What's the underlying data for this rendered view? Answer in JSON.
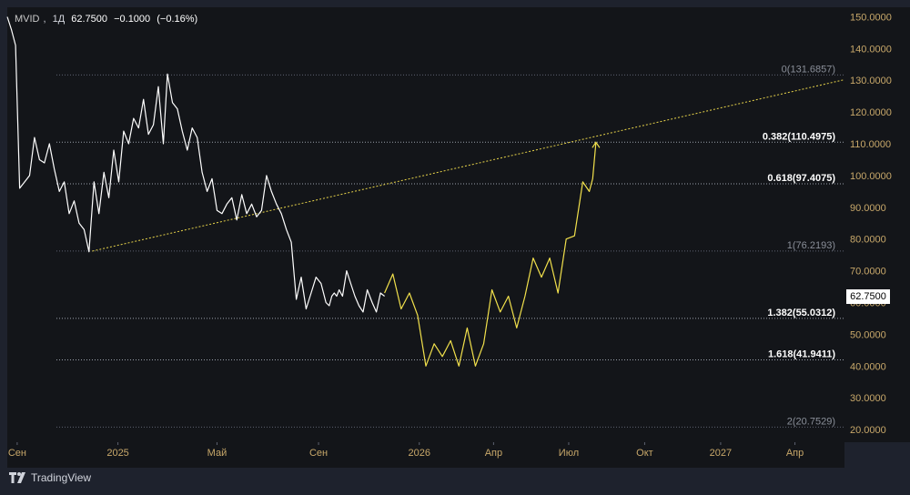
{
  "header": {
    "symbol": "MVID",
    "interval": "1Д",
    "price": "62.7500",
    "change": "−0.1000",
    "change_pct": "(−0.16%)"
  },
  "last_price_tag": "62.7500",
  "footer": {
    "brand": "TradingView",
    "logo": "tv-logo-icon"
  },
  "colors": {
    "background": "#131519",
    "price_line": "#ffffff",
    "projection": "#f2e14c",
    "axis_text": "#c8a86a",
    "fib_line": "#8a8f99"
  },
  "chart_data": {
    "type": "line",
    "y_axis": {
      "ylim": [
        16,
        153
      ],
      "ticks": [
        20,
        30,
        40,
        50,
        60,
        70,
        80,
        90,
        100,
        110,
        120,
        130,
        140,
        150
      ],
      "tick_labels": [
        "20.0000",
        "30.0000",
        "40.0000",
        "50.0000",
        "60.0000",
        "70.0000",
        "80.0000",
        "90.0000",
        "100.0000",
        "110.0000",
        "120.0000",
        "130.0000",
        "140.0000",
        "150.0000"
      ],
      "side": "right"
    },
    "x_axis": {
      "xlim": [
        "2024-08-20",
        "2027-05-31"
      ],
      "ticks": [
        "2024-09-01",
        "2025-01-01",
        "2025-05-01",
        "2025-09-01",
        "2026-01-01",
        "2026-04-01",
        "2026-07-01",
        "2026-10-01",
        "2027-01-01",
        "2027-04-01"
      ],
      "tick_labels": [
        "Сен",
        "2025",
        "Май",
        "Сен",
        "2026",
        "Апр",
        "Июл",
        "Окт",
        "2027",
        "Апр"
      ]
    },
    "grid": false,
    "fib_levels": [
      {
        "label": "0(131.6857)",
        "value": 131.6857,
        "bold": false
      },
      {
        "label": "0.382(110.4975)",
        "value": 110.4975,
        "bold": true
      },
      {
        "label": "0.618(97.4075)",
        "value": 97.4075,
        "bold": true
      },
      {
        "label": "1(76.2193)",
        "value": 76.2193,
        "bold": false
      },
      {
        "label": "1.382(55.0312)",
        "value": 55.0312,
        "bold": true
      },
      {
        "label": "1.618(41.9411)",
        "value": 41.9411,
        "bold": true
      },
      {
        "label": "2(20.7529)",
        "value": 20.7529,
        "bold": false
      }
    ],
    "trendline": {
      "x": [
        "2024-12-01",
        "2027-05-31"
      ],
      "y": [
        76.2,
        130.2
      ]
    },
    "series": [
      {
        "color": "#ffffff",
        "x": [
          "2024-08-20",
          "2024-08-25",
          "2024-08-30",
          "2024-09-04",
          "2024-09-10",
          "2024-09-16",
          "2024-09-22",
          "2024-09-28",
          "2024-10-04",
          "2024-10-10",
          "2024-10-16",
          "2024-10-22",
          "2024-10-28",
          "2024-11-03",
          "2024-11-09",
          "2024-11-15",
          "2024-11-21",
          "2024-11-27",
          "2024-12-03",
          "2024-12-09",
          "2024-12-15",
          "2024-12-21",
          "2024-12-27",
          "2025-01-02",
          "2025-01-08",
          "2025-01-14",
          "2025-01-20",
          "2025-01-26",
          "2025-02-01",
          "2025-02-07",
          "2025-02-13",
          "2025-02-19",
          "2025-02-25",
          "2025-03-02",
          "2025-03-08",
          "2025-03-14",
          "2025-03-20",
          "2025-03-26",
          "2025-04-01",
          "2025-04-07",
          "2025-04-13",
          "2025-04-19",
          "2025-04-25",
          "2025-05-01",
          "2025-05-07",
          "2025-05-13",
          "2025-05-19",
          "2025-05-25",
          "2025-05-31",
          "2025-06-06",
          "2025-06-12",
          "2025-06-18",
          "2025-06-24",
          "2025-06-30",
          "2025-07-06",
          "2025-07-12",
          "2025-07-18",
          "2025-07-24",
          "2025-07-30",
          "2025-08-05",
          "2025-08-11",
          "2025-08-17",
          "2025-08-23",
          "2025-08-29",
          "2025-09-04",
          "2025-09-10",
          "2025-09-14",
          "2025-09-17",
          "2025-09-20",
          "2025-09-23",
          "2025-09-26",
          "2025-09-30",
          "2025-10-05",
          "2025-10-10",
          "2025-10-15",
          "2025-10-20",
          "2025-10-25",
          "2025-10-30",
          "2025-11-05",
          "2025-11-10",
          "2025-11-15",
          "2025-11-20"
        ],
        "y": [
          150,
          146,
          141,
          96,
          98,
          100,
          112,
          105,
          104,
          110,
          102,
          95,
          98,
          88,
          92,
          85,
          83,
          76,
          98,
          88,
          101,
          93,
          108,
          98,
          114,
          110,
          118,
          115,
          124,
          113,
          116,
          128,
          110,
          132,
          123,
          121,
          114,
          108,
          115,
          112,
          101,
          95,
          99,
          89,
          88,
          91,
          93,
          86,
          94,
          88,
          91,
          87,
          89,
          100,
          95,
          91,
          88,
          83,
          79,
          61,
          68,
          58,
          63,
          68,
          66,
          60,
          59,
          62,
          63,
          62,
          64,
          62,
          70,
          66,
          62,
          59,
          57,
          64,
          60,
          57,
          63,
          62
        ]
      },
      {
        "color": "#f2e14c",
        "x": [
          "2025-11-20",
          "2025-11-30",
          "2025-12-10",
          "2025-12-20",
          "2025-12-30",
          "2026-01-09",
          "2026-01-19",
          "2026-01-29",
          "2026-02-08",
          "2026-02-18",
          "2026-02-28",
          "2026-03-10",
          "2026-03-20",
          "2026-03-30",
          "2026-04-09",
          "2026-04-19",
          "2026-04-29",
          "2026-05-09",
          "2026-05-19",
          "2026-05-29",
          "2026-06-08",
          "2026-06-18",
          "2026-06-28",
          "2026-07-08",
          "2026-07-18",
          "2026-07-26",
          "2026-07-30",
          "2026-08-03"
        ],
        "y": [
          63,
          69,
          58,
          63,
          56,
          40,
          47,
          43,
          48,
          40,
          52,
          40,
          47,
          64,
          57,
          62,
          52,
          62,
          74,
          68,
          74,
          63,
          80,
          81,
          98,
          95,
          99,
          110.5
        ]
      }
    ]
  }
}
